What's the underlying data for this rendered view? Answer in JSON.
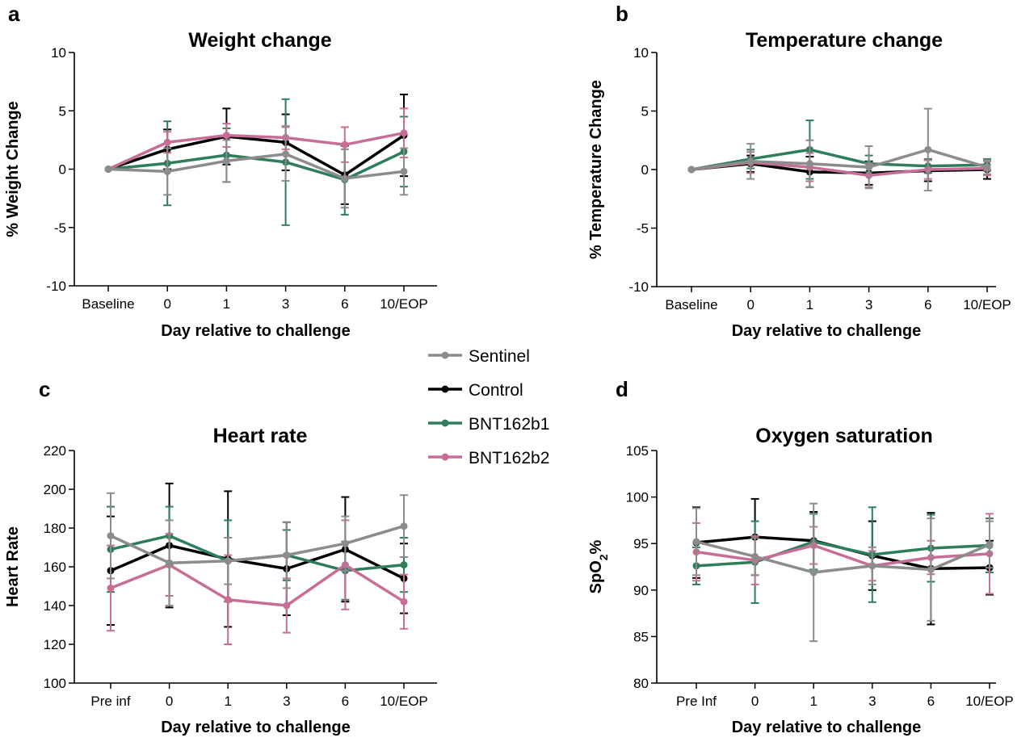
{
  "legend": [
    {
      "name": "Sentinel",
      "color": "#8c8c8c"
    },
    {
      "name": "Control",
      "color": "#000000"
    },
    {
      "name": "BNT162b1",
      "color": "#2e7d5b"
    },
    {
      "name": "BNT162b2",
      "color": "#c86e96"
    }
  ],
  "chart_data": [
    {
      "panel": "a",
      "type": "line",
      "title": "Weight change",
      "xlabel": "Day relative to challenge",
      "ylabel": "% Weight Change",
      "categories": [
        "Baseline",
        "0",
        "1",
        "3",
        "6",
        "10/EOP"
      ],
      "ylim": [
        -10,
        10
      ],
      "yticks": [
        -10,
        -5,
        0,
        5,
        10
      ],
      "ytick_labels": [
        "-10",
        "-5",
        "0",
        "5",
        "10"
      ],
      "series": [
        {
          "name": "Sentinel",
          "values": [
            0,
            -0.2,
            0.7,
            1.3,
            -0.8,
            -0.2
          ],
          "errors": [
            0,
            2.0,
            1.8,
            2.3,
            2.5,
            2.0
          ]
        },
        {
          "name": "Control",
          "values": [
            0,
            1.7,
            2.8,
            2.3,
            -0.5,
            2.9
          ],
          "errors": [
            0,
            1.7,
            2.4,
            2.4,
            2.5,
            3.5
          ]
        },
        {
          "name": "BNT162b1",
          "values": [
            0,
            0.5,
            1.2,
            0.6,
            -0.9,
            1.5
          ],
          "errors": [
            0,
            3.6,
            2.3,
            5.4,
            3.0,
            3.0
          ]
        },
        {
          "name": "BNT162b2",
          "values": [
            0,
            2.3,
            2.9,
            2.7,
            2.1,
            3.1
          ],
          "errors": [
            0,
            0.9,
            1.0,
            1.0,
            1.5,
            2.1
          ]
        }
      ]
    },
    {
      "panel": "b",
      "type": "line",
      "title": "Temperature change",
      "xlabel": "Day relative to challenge",
      "ylabel": "% Temperature Change",
      "categories": [
        "Baseline",
        "0",
        "1",
        "3",
        "6",
        "10/EOP"
      ],
      "ylim": [
        -10,
        10
      ],
      "yticks": [
        -10,
        -5,
        0,
        5,
        10
      ],
      "ytick_labels": [
        "-10",
        "-5",
        "0",
        "5",
        "10"
      ],
      "series": [
        {
          "name": "Sentinel",
          "values": [
            0,
            0.7,
            0.5,
            0.2,
            1.7,
            0.2
          ],
          "errors": [
            0,
            1.5,
            2.0,
            1.8,
            3.5,
            0.6
          ]
        },
        {
          "name": "Control",
          "values": [
            0,
            0.5,
            -0.2,
            -0.3,
            -0.1,
            0
          ],
          "errors": [
            0,
            0.7,
            1.3,
            1.0,
            0.9,
            0.8
          ]
        },
        {
          "name": "BNT162b1",
          "values": [
            0,
            0.9,
            1.7,
            0.5,
            0.3,
            0.4
          ],
          "errors": [
            0,
            0.8,
            2.5,
            0.7,
            0.6,
            0.5
          ]
        },
        {
          "name": "BNT162b2",
          "values": [
            0,
            0.6,
            0.2,
            -0.5,
            0,
            0.1
          ],
          "errors": [
            0,
            0.9,
            1.2,
            1.0,
            0.8,
            0.6
          ]
        }
      ]
    },
    {
      "panel": "c",
      "type": "line",
      "title": "Heart rate",
      "xlabel": "Day relative to challenge",
      "ylabel": "Heart Rate",
      "categories": [
        "Pre inf",
        "0",
        "1",
        "3",
        "6",
        "10/EOP"
      ],
      "ylim": [
        100,
        220
      ],
      "yticks": [
        100,
        120,
        140,
        160,
        180,
        200,
        220
      ],
      "ytick_labels": [
        "100",
        "120",
        "140",
        "160",
        "180",
        "200",
        "220"
      ],
      "series": [
        {
          "name": "Sentinel",
          "values": [
            176,
            162,
            163,
            166,
            172,
            181
          ],
          "errors": [
            22,
            22,
            12,
            17,
            14,
            16
          ]
        },
        {
          "name": "Control",
          "values": [
            158,
            171,
            164,
            159,
            169,
            154
          ],
          "errors": [
            28,
            32,
            35,
            24,
            27,
            18
          ]
        },
        {
          "name": "BNT162b1",
          "values": [
            169,
            176,
            163,
            166,
            158,
            161
          ],
          "errors": [
            22,
            15,
            21,
            13,
            15,
            14
          ]
        },
        {
          "name": "BNT162b2",
          "values": [
            149,
            161,
            143,
            140,
            161,
            142
          ],
          "errors": [
            22,
            16,
            23,
            14,
            23,
            14
          ]
        }
      ]
    },
    {
      "panel": "d",
      "type": "line",
      "title": "Oxygen saturation",
      "xlabel": "Day relative to challenge",
      "ylabel": "SpO",
      "ylabel_subscript": "2",
      "ylabel_suffix": "%",
      "categories": [
        "Pre Inf",
        "0",
        "1",
        "3",
        "6",
        "10/EOP"
      ],
      "ylim": [
        80,
        105
      ],
      "yticks": [
        80,
        85,
        90,
        95,
        100,
        105
      ],
      "ytick_labels": [
        "80",
        "85",
        "90",
        "95",
        "100",
        "105"
      ],
      "series": [
        {
          "name": "Sentinel",
          "values": [
            95.2,
            93.6,
            91.9,
            92.6,
            92.2,
            94.9
          ],
          "errors": [
            3.6,
            2.0,
            7.4,
            2.0,
            5.5,
            2.5
          ]
        },
        {
          "name": "Control",
          "values": [
            95.1,
            95.7,
            95.3,
            93.7,
            92.3,
            92.4
          ],
          "errors": [
            3.8,
            4.1,
            3.1,
            3.7,
            6.0,
            2.9
          ]
        },
        {
          "name": "BNT162b1",
          "values": [
            92.6,
            93.0,
            95.2,
            93.8,
            94.5,
            94.8
          ],
          "errors": [
            2.0,
            4.4,
            3.0,
            5.1,
            3.6,
            2.9
          ]
        },
        {
          "name": "BNT162b2",
          "values": [
            94.1,
            93.2,
            94.8,
            92.6,
            93.5,
            93.9
          ],
          "errors": [
            3.1,
            2.6,
            2.0,
            1.6,
            1.8,
            4.3
          ]
        }
      ]
    }
  ]
}
